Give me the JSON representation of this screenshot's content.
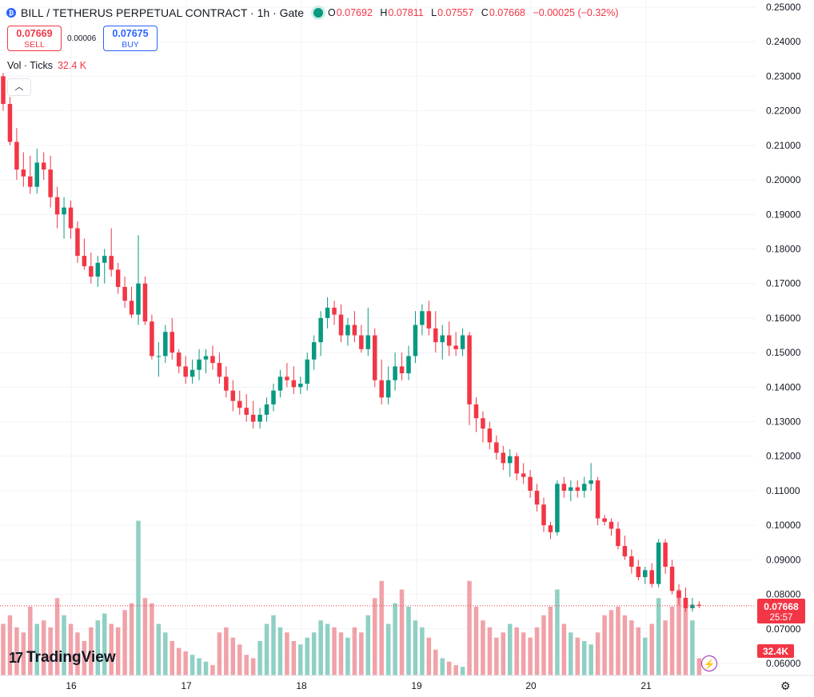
{
  "header": {
    "symbol_icon": "bitcoin-coin-icon",
    "title": "BILL / TETHERUS PERPETUAL CONTRACT · 1h · Gate",
    "ohlc": {
      "o_label": "O",
      "o": "0.07692",
      "h_label": "H",
      "h": "0.07811",
      "l_label": "L",
      "l": "0.07557",
      "c_label": "C",
      "c": "0.07668",
      "change": "−0.00025 (−0.32%)"
    }
  },
  "trade": {
    "sell_price": "0.07669",
    "sell_label": "SELL",
    "spread": "0.00006",
    "buy_price": "0.07675",
    "buy_label": "BUY"
  },
  "volume_legend": {
    "label": "Vol · Ticks",
    "value": "32.4 K"
  },
  "collapse_icon": "chevron-up-icon",
  "logo_text": "TradingView",
  "colors": {
    "up": "#089981",
    "down": "#f23645",
    "up_vol": "#8fd0c4",
    "down_vol": "#f0a2a8",
    "grid": "#f0f3fa"
  },
  "chart_data": {
    "type": "candlestick",
    "price_axis": {
      "min": 0.06,
      "max": 0.25,
      "ticks": [
        "0.25000",
        "0.24000",
        "0.23000",
        "0.22000",
        "0.21000",
        "0.20000",
        "0.19000",
        "0.18000",
        "0.17000",
        "0.16000",
        "0.15000",
        "0.14000",
        "0.13000",
        "0.12000",
        "0.11000",
        "0.10000",
        "0.09000",
        "0.08000",
        "0.07000",
        "0.06000"
      ]
    },
    "time_axis": {
      "labels": [
        "16",
        "17",
        "18",
        "19",
        "20",
        "21"
      ]
    },
    "last_price_label": "0.07668",
    "countdown": "25:57",
    "volume_label": "32.4K",
    "candles": [
      [
        0.23,
        0.231,
        0.22,
        0.222
      ],
      [
        0.222,
        0.224,
        0.21,
        0.211
      ],
      [
        0.211,
        0.215,
        0.2,
        0.203
      ],
      [
        0.203,
        0.208,
        0.198,
        0.201
      ],
      [
        0.201,
        0.207,
        0.196,
        0.198
      ],
      [
        0.198,
        0.209,
        0.196,
        0.205
      ],
      [
        0.205,
        0.208,
        0.2,
        0.203
      ],
      [
        0.203,
        0.207,
        0.192,
        0.195
      ],
      [
        0.195,
        0.198,
        0.186,
        0.19
      ],
      [
        0.19,
        0.195,
        0.183,
        0.192
      ],
      [
        0.192,
        0.194,
        0.183,
        0.186
      ],
      [
        0.186,
        0.188,
        0.176,
        0.178
      ],
      [
        0.178,
        0.183,
        0.174,
        0.175
      ],
      [
        0.175,
        0.179,
        0.17,
        0.172
      ],
      [
        0.172,
        0.178,
        0.169,
        0.176
      ],
      [
        0.176,
        0.18,
        0.17,
        0.178
      ],
      [
        0.178,
        0.186,
        0.172,
        0.174
      ],
      [
        0.174,
        0.176,
        0.167,
        0.169
      ],
      [
        0.169,
        0.172,
        0.163,
        0.165
      ],
      [
        0.165,
        0.169,
        0.16,
        0.161
      ],
      [
        0.161,
        0.184,
        0.158,
        0.17
      ],
      [
        0.17,
        0.172,
        0.158,
        0.159
      ],
      [
        0.159,
        0.161,
        0.148,
        0.149
      ],
      [
        0.149,
        0.153,
        0.143,
        0.149
      ],
      [
        0.149,
        0.158,
        0.147,
        0.156
      ],
      [
        0.156,
        0.16,
        0.148,
        0.15
      ],
      [
        0.15,
        0.151,
        0.144,
        0.146
      ],
      [
        0.146,
        0.149,
        0.141,
        0.143
      ],
      [
        0.143,
        0.148,
        0.141,
        0.145
      ],
      [
        0.145,
        0.151,
        0.142,
        0.148
      ],
      [
        0.148,
        0.151,
        0.144,
        0.149
      ],
      [
        0.149,
        0.152,
        0.145,
        0.147
      ],
      [
        0.147,
        0.15,
        0.141,
        0.143
      ],
      [
        0.143,
        0.146,
        0.137,
        0.139
      ],
      [
        0.139,
        0.142,
        0.133,
        0.136
      ],
      [
        0.136,
        0.139,
        0.132,
        0.134
      ],
      [
        0.134,
        0.138,
        0.13,
        0.132
      ],
      [
        0.132,
        0.136,
        0.128,
        0.13
      ],
      [
        0.13,
        0.134,
        0.128,
        0.132
      ],
      [
        0.132,
        0.137,
        0.13,
        0.135
      ],
      [
        0.135,
        0.141,
        0.133,
        0.139
      ],
      [
        0.139,
        0.145,
        0.137,
        0.143
      ],
      [
        0.143,
        0.147,
        0.14,
        0.142
      ],
      [
        0.142,
        0.146,
        0.138,
        0.14
      ],
      [
        0.14,
        0.143,
        0.138,
        0.141
      ],
      [
        0.141,
        0.15,
        0.139,
        0.148
      ],
      [
        0.148,
        0.155,
        0.145,
        0.153
      ],
      [
        0.153,
        0.162,
        0.149,
        0.16
      ],
      [
        0.16,
        0.166,
        0.157,
        0.163
      ],
      [
        0.163,
        0.165,
        0.158,
        0.161
      ],
      [
        0.161,
        0.164,
        0.153,
        0.155
      ],
      [
        0.155,
        0.16,
        0.152,
        0.158
      ],
      [
        0.158,
        0.162,
        0.153,
        0.155
      ],
      [
        0.155,
        0.158,
        0.15,
        0.151
      ],
      [
        0.151,
        0.163,
        0.149,
        0.155
      ],
      [
        0.155,
        0.157,
        0.14,
        0.142
      ],
      [
        0.142,
        0.148,
        0.135,
        0.137
      ],
      [
        0.137,
        0.146,
        0.135,
        0.142
      ],
      [
        0.142,
        0.15,
        0.139,
        0.146
      ],
      [
        0.146,
        0.15,
        0.142,
        0.144
      ],
      [
        0.144,
        0.152,
        0.142,
        0.149
      ],
      [
        0.149,
        0.162,
        0.147,
        0.158
      ],
      [
        0.158,
        0.164,
        0.155,
        0.162
      ],
      [
        0.162,
        0.165,
        0.155,
        0.157
      ],
      [
        0.157,
        0.162,
        0.15,
        0.153
      ],
      [
        0.153,
        0.158,
        0.148,
        0.155
      ],
      [
        0.155,
        0.159,
        0.149,
        0.152
      ],
      [
        0.152,
        0.156,
        0.149,
        0.151
      ],
      [
        0.151,
        0.157,
        0.149,
        0.155
      ],
      [
        0.155,
        0.156,
        0.129,
        0.135
      ],
      [
        0.135,
        0.137,
        0.127,
        0.131
      ],
      [
        0.131,
        0.133,
        0.124,
        0.128
      ],
      [
        0.128,
        0.13,
        0.122,
        0.124
      ],
      [
        0.124,
        0.126,
        0.119,
        0.121
      ],
      [
        0.121,
        0.123,
        0.116,
        0.118
      ],
      [
        0.118,
        0.122,
        0.114,
        0.12
      ],
      [
        0.12,
        0.121,
        0.113,
        0.115
      ],
      [
        0.115,
        0.118,
        0.112,
        0.114
      ],
      [
        0.114,
        0.116,
        0.108,
        0.11
      ],
      [
        0.11,
        0.112,
        0.104,
        0.106
      ],
      [
        0.106,
        0.108,
        0.098,
        0.1
      ],
      [
        0.1,
        0.101,
        0.096,
        0.098
      ],
      [
        0.098,
        0.113,
        0.097,
        0.112
      ],
      [
        0.112,
        0.114,
        0.108,
        0.11
      ],
      [
        0.11,
        0.113,
        0.107,
        0.111
      ],
      [
        0.111,
        0.113,
        0.108,
        0.11
      ],
      [
        0.11,
        0.114,
        0.108,
        0.112
      ],
      [
        0.112,
        0.118,
        0.11,
        0.113
      ],
      [
        0.113,
        0.114,
        0.1,
        0.102
      ],
      [
        0.102,
        0.103,
        0.1,
        0.101
      ],
      [
        0.101,
        0.102,
        0.097,
        0.099
      ],
      [
        0.099,
        0.101,
        0.093,
        0.094
      ],
      [
        0.094,
        0.097,
        0.09,
        0.091
      ],
      [
        0.091,
        0.093,
        0.086,
        0.088
      ],
      [
        0.088,
        0.09,
        0.084,
        0.085
      ],
      [
        0.085,
        0.088,
        0.083,
        0.087
      ],
      [
        0.087,
        0.089,
        0.082,
        0.083
      ],
      [
        0.083,
        0.096,
        0.082,
        0.095
      ],
      [
        0.095,
        0.096,
        0.086,
        0.088
      ],
      [
        0.088,
        0.09,
        0.08,
        0.081
      ],
      [
        0.081,
        0.083,
        0.077,
        0.079
      ],
      [
        0.079,
        0.082,
        0.075,
        0.076
      ],
      [
        0.076,
        0.079,
        0.075,
        0.077
      ],
      [
        0.077,
        0.078,
        0.076,
        0.0767
      ]
    ],
    "volumes": [
      0.3,
      0.35,
      0.28,
      0.25,
      0.4,
      0.3,
      0.32,
      0.28,
      0.45,
      0.35,
      0.3,
      0.25,
      0.2,
      0.28,
      0.32,
      0.36,
      0.3,
      0.28,
      0.38,
      0.42,
      0.9,
      0.45,
      0.42,
      0.3,
      0.25,
      0.2,
      0.16,
      0.14,
      0.12,
      0.1,
      0.08,
      0.06,
      0.25,
      0.28,
      0.22,
      0.18,
      0.12,
      0.1,
      0.2,
      0.3,
      0.35,
      0.28,
      0.25,
      0.2,
      0.18,
      0.22,
      0.25,
      0.32,
      0.3,
      0.28,
      0.25,
      0.22,
      0.28,
      0.25,
      0.35,
      0.45,
      0.55,
      0.3,
      0.42,
      0.5,
      0.4,
      0.32,
      0.28,
      0.22,
      0.15,
      0.1,
      0.08,
      0.06,
      0.05,
      0.55,
      0.4,
      0.32,
      0.28,
      0.22,
      0.25,
      0.3,
      0.28,
      0.25,
      0.22,
      0.28,
      0.35,
      0.4,
      0.5,
      0.3,
      0.25,
      0.22,
      0.2,
      0.18,
      0.25,
      0.35,
      0.38,
      0.4,
      0.35,
      0.32,
      0.28,
      0.22,
      0.3,
      0.45,
      0.32,
      0.4,
      0.5,
      0.45,
      0.32,
      0.1
    ]
  }
}
